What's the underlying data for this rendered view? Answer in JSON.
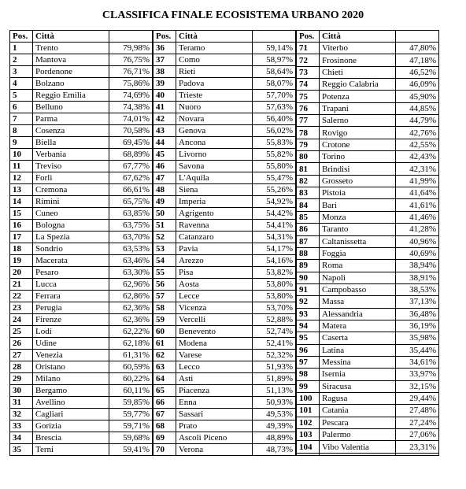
{
  "title": "CLASSIFICA FINALE ECOSISTEMA URBANO 2020",
  "headers": {
    "pos": "Pos.",
    "city": "Città"
  },
  "columns": [
    {
      "rows": [
        {
          "pos": "1",
          "city": "Trento",
          "pct": "79,98%"
        },
        {
          "pos": "2",
          "city": "Mantova",
          "pct": "76,75%"
        },
        {
          "pos": "3",
          "city": "Pordenone",
          "pct": "76,71%"
        },
        {
          "pos": "4",
          "city": "Bolzano",
          "pct": "75,86%"
        },
        {
          "pos": "5",
          "city": "Reggio Emilia",
          "pct": "74,69%"
        },
        {
          "pos": "6",
          "city": "Belluno",
          "pct": "74,38%"
        },
        {
          "pos": "7",
          "city": "Parma",
          "pct": "74,01%"
        },
        {
          "pos": "8",
          "city": "Cosenza",
          "pct": "70,58%"
        },
        {
          "pos": "9",
          "city": "Biella",
          "pct": "69,45%"
        },
        {
          "pos": "10",
          "city": "Verbania",
          "pct": "68,89%"
        },
        {
          "pos": "11",
          "city": "Treviso",
          "pct": "67,77%"
        },
        {
          "pos": "12",
          "city": "Forlì",
          "pct": "67,62%"
        },
        {
          "pos": "13",
          "city": "Cremona",
          "pct": "66,61%"
        },
        {
          "pos": "14",
          "city": "Rimini",
          "pct": "65,75%"
        },
        {
          "pos": "15",
          "city": "Cuneo",
          "pct": "63,85%"
        },
        {
          "pos": "16",
          "city": "Bologna",
          "pct": "63,75%"
        },
        {
          "pos": "17",
          "city": "La Spezia",
          "pct": "63,70%"
        },
        {
          "pos": "18",
          "city": "Sondrio",
          "pct": "63,53%"
        },
        {
          "pos": "19",
          "city": "Macerata",
          "pct": "63,46%"
        },
        {
          "pos": "20",
          "city": "Pesaro",
          "pct": "63,30%"
        },
        {
          "pos": "21",
          "city": "Lucca",
          "pct": "62,96%"
        },
        {
          "pos": "22",
          "city": "Ferrara",
          "pct": "62,86%"
        },
        {
          "pos": "23",
          "city": "Perugia",
          "pct": "62,36%"
        },
        {
          "pos": "24",
          "city": "Firenze",
          "pct": "62,36%"
        },
        {
          "pos": "25",
          "city": "Lodi",
          "pct": "62,22%"
        },
        {
          "pos": "26",
          "city": "Udine",
          "pct": "62,18%"
        },
        {
          "pos": "27",
          "city": "Venezia",
          "pct": "61,31%"
        },
        {
          "pos": "28",
          "city": "Oristano",
          "pct": "60,59%"
        },
        {
          "pos": "29",
          "city": "Milano",
          "pct": "60,22%"
        },
        {
          "pos": "30",
          "city": "Bergamo",
          "pct": "60,11%"
        },
        {
          "pos": "31",
          "city": "Avellino",
          "pct": "59,85%"
        },
        {
          "pos": "32",
          "city": "Cagliari",
          "pct": "59,77%"
        },
        {
          "pos": "33",
          "city": "Gorizia",
          "pct": "59,71%"
        },
        {
          "pos": "34",
          "city": "Brescia",
          "pct": "59,68%"
        },
        {
          "pos": "35",
          "city": "Terni",
          "pct": "59,41%"
        }
      ]
    },
    {
      "rows": [
        {
          "pos": "36",
          "city": "Teramo",
          "pct": "59,14%"
        },
        {
          "pos": "37",
          "city": "Como",
          "pct": "58,97%"
        },
        {
          "pos": "38",
          "city": "Rieti",
          "pct": "58,64%"
        },
        {
          "pos": "39",
          "city": "Padova",
          "pct": "58,07%"
        },
        {
          "pos": "40",
          "city": "Trieste",
          "pct": "57,70%"
        },
        {
          "pos": "41",
          "city": "Nuoro",
          "pct": "57,63%"
        },
        {
          "pos": "42",
          "city": "Novara",
          "pct": "56,40%"
        },
        {
          "pos": "43",
          "city": "Genova",
          "pct": "56,02%"
        },
        {
          "pos": "44",
          "city": "Ancona",
          "pct": "55,83%"
        },
        {
          "pos": "45",
          "city": "Livorno",
          "pct": "55,82%"
        },
        {
          "pos": "46",
          "city": "Savona",
          "pct": "55,80%"
        },
        {
          "pos": "47",
          "city": "L'Aquila",
          "pct": "55,47%"
        },
        {
          "pos": "48",
          "city": "Siena",
          "pct": "55,26%"
        },
        {
          "pos": "49",
          "city": "Imperia",
          "pct": "54,92%"
        },
        {
          "pos": "50",
          "city": "Agrigento",
          "pct": "54,42%"
        },
        {
          "pos": "51",
          "city": "Ravenna",
          "pct": "54,41%"
        },
        {
          "pos": "52",
          "city": "Catanzaro",
          "pct": "54,31%"
        },
        {
          "pos": "53",
          "city": "Pavia",
          "pct": "54,17%"
        },
        {
          "pos": "54",
          "city": "Arezzo",
          "pct": "54,16%"
        },
        {
          "pos": "55",
          "city": "Pisa",
          "pct": "53,82%"
        },
        {
          "pos": "56",
          "city": "Aosta",
          "pct": "53,80%"
        },
        {
          "pos": "57",
          "city": "Lecce",
          "pct": "53,80%"
        },
        {
          "pos": "58",
          "city": "Vicenza",
          "pct": "53,70%"
        },
        {
          "pos": "59",
          "city": "Vercelli",
          "pct": "52,88%"
        },
        {
          "pos": "60",
          "city": "Benevento",
          "pct": "52,74%"
        },
        {
          "pos": "61",
          "city": "Modena",
          "pct": "52,41%"
        },
        {
          "pos": "62",
          "city": "Varese",
          "pct": "52,32%"
        },
        {
          "pos": "63",
          "city": "Lecco",
          "pct": "51,93%"
        },
        {
          "pos": "64",
          "city": "Asti",
          "pct": "51,89%"
        },
        {
          "pos": "65",
          "city": "Piacenza",
          "pct": "51,13%"
        },
        {
          "pos": "66",
          "city": "Enna",
          "pct": "50,93%"
        },
        {
          "pos": "67",
          "city": "Sassari",
          "pct": "49,53%"
        },
        {
          "pos": "68",
          "city": "Prato",
          "pct": "49,39%"
        },
        {
          "pos": "69",
          "city": "Ascoli Piceno",
          "pct": "48,89%"
        },
        {
          "pos": "70",
          "city": "Verona",
          "pct": "48,73%"
        }
      ]
    },
    {
      "rows": [
        {
          "pos": "71",
          "city": "Viterbo",
          "pct": "47,80%"
        },
        {
          "pos": "72",
          "city": "Frosinone",
          "pct": "47,18%"
        },
        {
          "pos": "73",
          "city": "Chieti",
          "pct": "46,52%"
        },
        {
          "pos": "74",
          "city": "Reggio Calabria",
          "pct": "46,09%"
        },
        {
          "pos": "75",
          "city": "Potenza",
          "pct": "45,90%"
        },
        {
          "pos": "76",
          "city": "Trapani",
          "pct": "44,85%"
        },
        {
          "pos": "77",
          "city": "Salerno",
          "pct": "44,79%"
        },
        {
          "pos": "78",
          "city": "Rovigo",
          "pct": "42,76%"
        },
        {
          "pos": "79",
          "city": "Crotone",
          "pct": "42,55%"
        },
        {
          "pos": "80",
          "city": "Torino",
          "pct": "42,43%"
        },
        {
          "pos": "81",
          "city": "Brindisi",
          "pct": "42,31%"
        },
        {
          "pos": "82",
          "city": "Grosseto",
          "pct": "41,99%"
        },
        {
          "pos": "83",
          "city": "Pistoia",
          "pct": "41,64%"
        },
        {
          "pos": "84",
          "city": "Bari",
          "pct": "41,61%"
        },
        {
          "pos": "85",
          "city": "Monza",
          "pct": "41,46%"
        },
        {
          "pos": "86",
          "city": "Taranto",
          "pct": "41,28%"
        },
        {
          "pos": "87",
          "city": "Caltanissetta",
          "pct": "40,96%"
        },
        {
          "pos": "88",
          "city": "Foggia",
          "pct": "40,69%"
        },
        {
          "pos": "89",
          "city": "Roma",
          "pct": "38,94%"
        },
        {
          "pos": "90",
          "city": "Napoli",
          "pct": "38,91%"
        },
        {
          "pos": "91",
          "city": "Campobasso",
          "pct": "38,53%"
        },
        {
          "pos": "92",
          "city": "Massa",
          "pct": "37,13%"
        },
        {
          "pos": "93",
          "city": "Alessandria",
          "pct": "36,48%"
        },
        {
          "pos": "94",
          "city": "Matera",
          "pct": "36,19%"
        },
        {
          "pos": "95",
          "city": "Caserta",
          "pct": "35,98%"
        },
        {
          "pos": "96",
          "city": "Latina",
          "pct": "35,44%"
        },
        {
          "pos": "97",
          "city": "Messina",
          "pct": "34,61%"
        },
        {
          "pos": "98",
          "city": "Isernia",
          "pct": "33,97%"
        },
        {
          "pos": "99",
          "city": "Siracusa",
          "pct": "32,15%"
        },
        {
          "pos": "100",
          "city": "Ragusa",
          "pct": "29,44%"
        },
        {
          "pos": "101",
          "city": "Catania",
          "pct": "27,48%"
        },
        {
          "pos": "102",
          "city": "Pescara",
          "pct": "27,24%"
        },
        {
          "pos": "103",
          "city": "Palermo",
          "pct": "27,06%"
        },
        {
          "pos": "104",
          "city": "Vibo Valentia",
          "pct": "23,31%"
        },
        {
          "pos": "",
          "city": "",
          "pct": ""
        }
      ]
    }
  ]
}
